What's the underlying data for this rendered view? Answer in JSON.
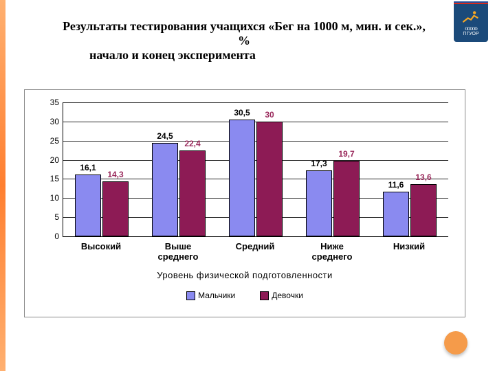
{
  "flag_colors": [
    "#ffffff",
    "#2050a0",
    "#d52b1e"
  ],
  "emblem_bg": "#1b4a7a",
  "emblem_label": "ПГУОР",
  "title_line1": "Результаты тестирования учащихся «Бег на 1000 м, мин. и сек.»,",
  "title_line2": "%",
  "title_line3": "начало и конец эксперимента",
  "chart": {
    "ymax": 35,
    "ytick_step": 5,
    "categories": [
      "Высокий",
      "Выше среднего",
      "Средний",
      "Ниже среднего",
      "Низкий"
    ],
    "series": [
      {
        "name": "Мальчики",
        "color": "#8a8af0",
        "label_color": "#000000",
        "values": [
          16.1,
          24.5,
          30.5,
          17.3,
          11.6
        ],
        "labels": [
          "16,1",
          "24,5",
          "30,5",
          "17,3",
          "11,6"
        ]
      },
      {
        "name": "Девочки",
        "color": "#8d1b55",
        "label_color": "#9a2a5c",
        "values": [
          14.3,
          22.4,
          30,
          19.7,
          13.6
        ],
        "labels": [
          "14,3",
          "22,4",
          "30",
          "19,7",
          "13,6"
        ]
      }
    ],
    "xaxis_title": "Уровень  физической  подготовленности"
  },
  "stripe_color": "#ff8a3d",
  "dot_color": "#f59b4a"
}
